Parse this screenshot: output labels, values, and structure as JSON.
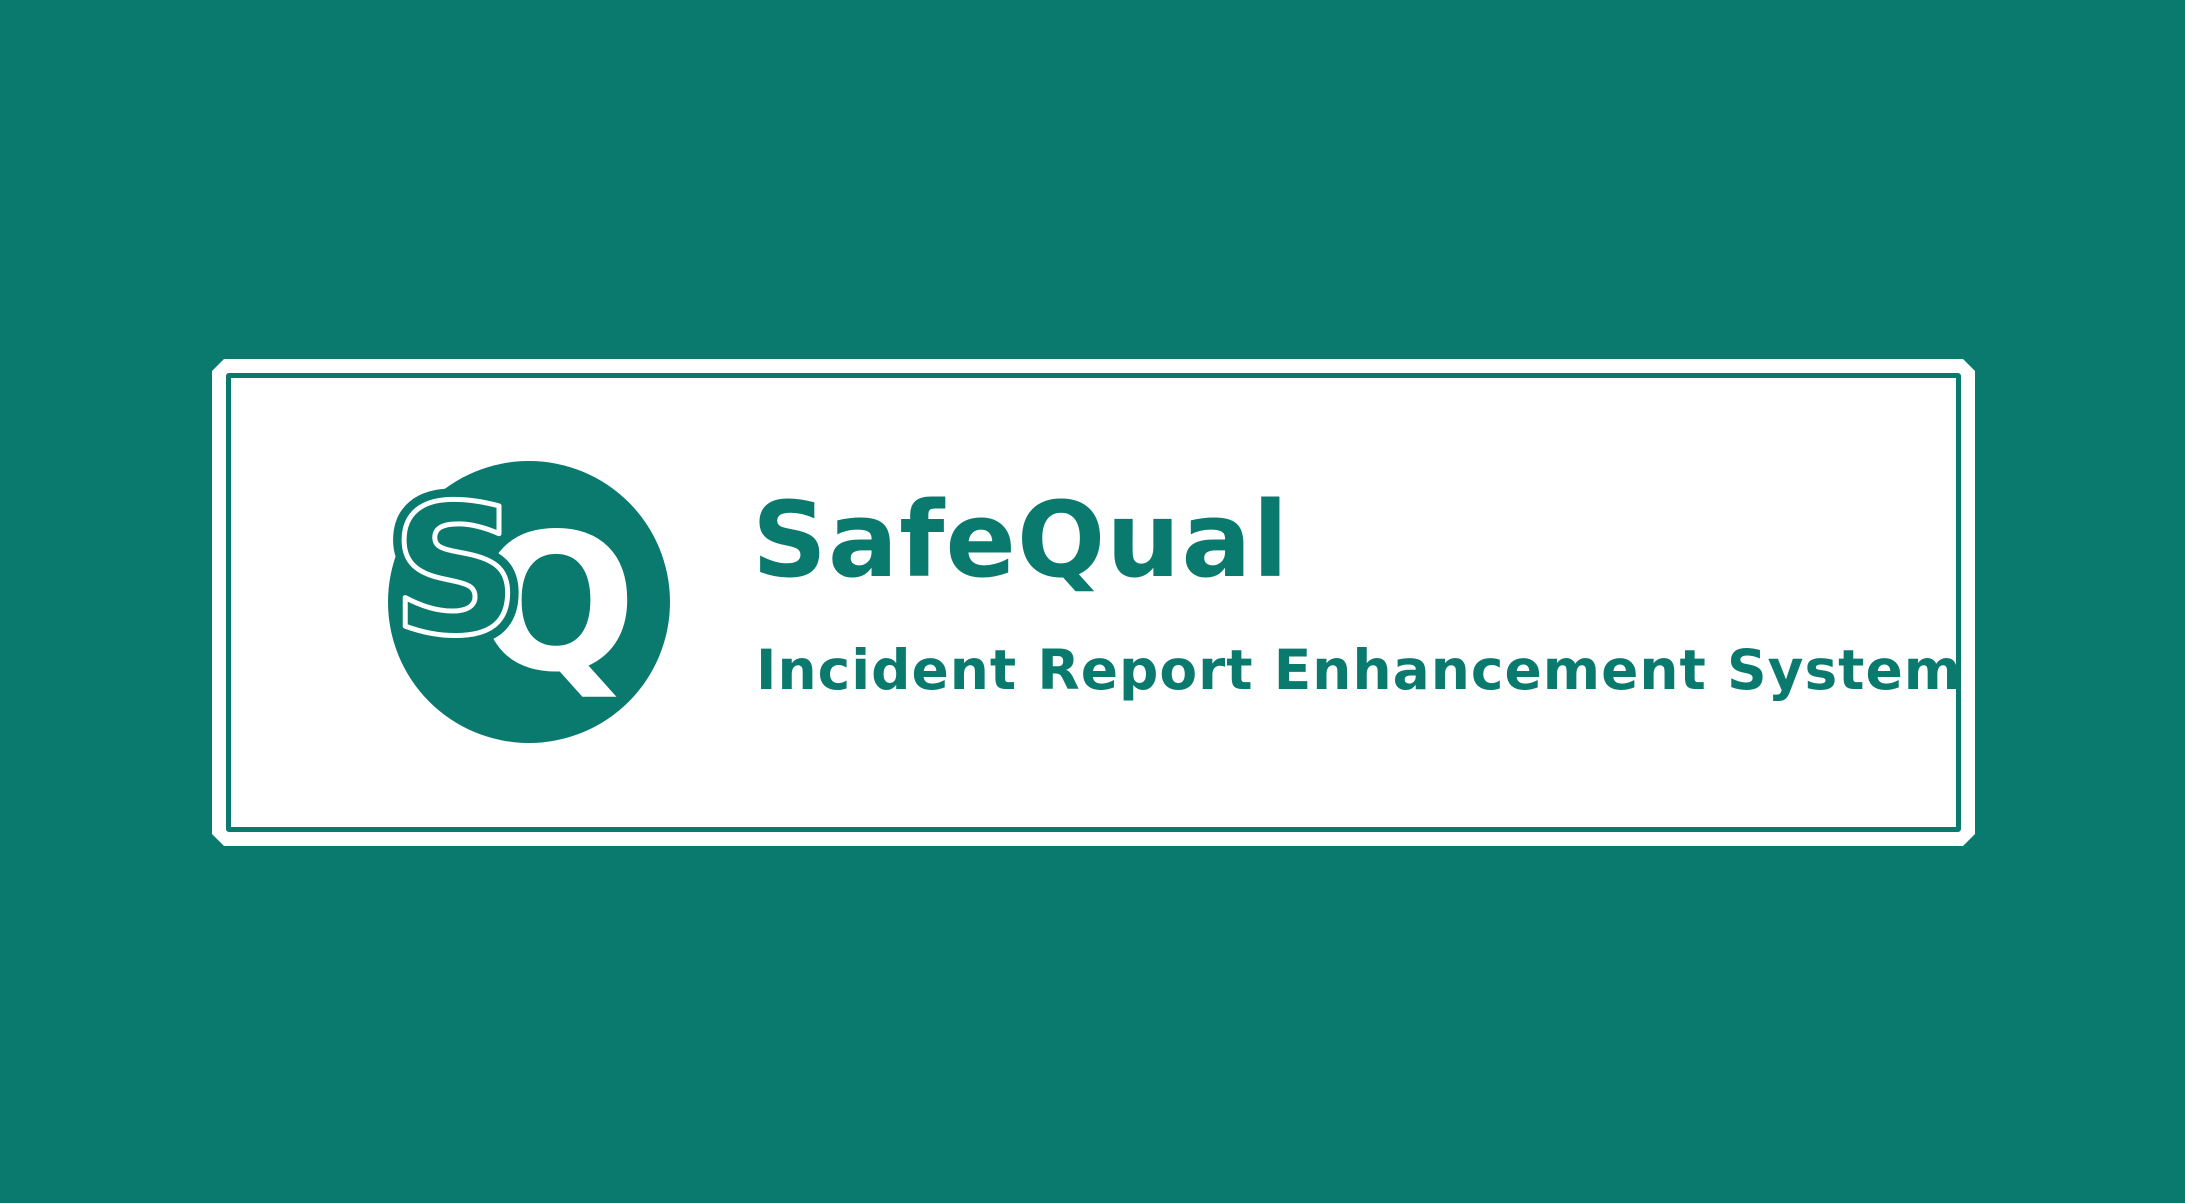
{
  "brand": {
    "name": "SafeQual",
    "tagline": "Incident Report Enhancement System",
    "logo_letters": "SQ"
  },
  "colors": {
    "background": "#0a7a6e",
    "panel": "#ffffff",
    "accent": "#0a7a6e"
  },
  "icons": {
    "logo": "sq-logo-icon"
  }
}
